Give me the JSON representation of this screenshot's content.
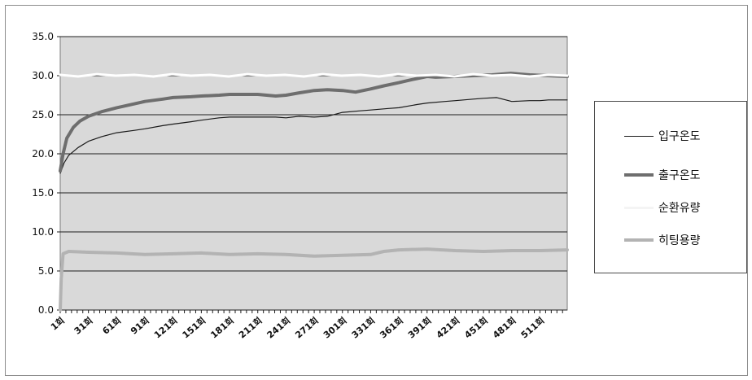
{
  "chart_data": {
    "type": "line",
    "title": "",
    "xlabel": "",
    "ylabel": "",
    "ylim": [
      0,
      35
    ],
    "y_ticks": [
      "0.0",
      "5.0",
      "10.0",
      "15.0",
      "20.0",
      "25.0",
      "30.0",
      "35.0"
    ],
    "x_range": [
      1,
      540
    ],
    "x_tick_values": [
      1,
      31,
      61,
      91,
      121,
      151,
      181,
      211,
      241,
      271,
      301,
      331,
      361,
      391,
      421,
      451,
      481,
      511
    ],
    "x_tick_labels": [
      "1회",
      "31회",
      "61회",
      "91회",
      "121회",
      "151회",
      "181회",
      "211회",
      "241회",
      "271회",
      "301회",
      "331회",
      "361회",
      "391회",
      "421회",
      "451회",
      "481회",
      "511회"
    ],
    "grid": "horizontal",
    "plot_background": "#d9d9d9",
    "legend_position": "right",
    "series": [
      {
        "name": "입구온도",
        "color": "#1a1a1a",
        "x": [
          1,
          5,
          10,
          20,
          31,
          45,
          61,
          80,
          91,
          110,
          121,
          140,
          151,
          170,
          181,
          200,
          211,
          230,
          241,
          255,
          271,
          285,
          301,
          320,
          331,
          350,
          361,
          380,
          391,
          410,
          421,
          440,
          451,
          465,
          481,
          500,
          511,
          520,
          540
        ],
        "y": [
          17.5,
          18.8,
          19.8,
          20.8,
          21.6,
          22.2,
          22.7,
          23.0,
          23.2,
          23.6,
          23.8,
          24.1,
          24.3,
          24.6,
          24.7,
          24.7,
          24.7,
          24.7,
          24.6,
          24.8,
          24.7,
          24.8,
          25.3,
          25.5,
          25.6,
          25.8,
          25.9,
          26.3,
          26.5,
          26.7,
          26.8,
          27.0,
          27.1,
          27.2,
          26.7,
          26.8,
          26.8,
          26.9,
          26.9
        ]
      },
      {
        "name": "출구온도",
        "color": "#6e6e6e",
        "x": [
          1,
          4,
          8,
          15,
          22,
          31,
          45,
          61,
          80,
          91,
          110,
          121,
          140,
          151,
          170,
          181,
          200,
          211,
          230,
          241,
          255,
          271,
          285,
          301,
          315,
          331,
          345,
          361,
          375,
          391,
          400,
          420,
          440,
          460,
          480,
          500,
          520,
          540
        ],
        "y": [
          17.8,
          20.0,
          22.0,
          23.4,
          24.2,
          24.8,
          25.4,
          25.9,
          26.4,
          26.7,
          27.0,
          27.2,
          27.3,
          27.4,
          27.5,
          27.6,
          27.6,
          27.6,
          27.4,
          27.5,
          27.8,
          28.1,
          28.2,
          28.1,
          27.9,
          28.3,
          28.7,
          29.1,
          29.5,
          29.9,
          29.8,
          29.9,
          30.0,
          30.1,
          30.3,
          30.1,
          30.0,
          29.9
        ]
      },
      {
        "name": "순환유량",
        "color": "#ffffff",
        "x": [
          1,
          20,
          40,
          60,
          80,
          100,
          120,
          140,
          160,
          180,
          200,
          220,
          240,
          260,
          280,
          300,
          320,
          340,
          360,
          380,
          400,
          420,
          440,
          460,
          480,
          500,
          520,
          540
        ],
        "y": [
          30.1,
          29.9,
          30.2,
          30.0,
          30.1,
          29.9,
          30.2,
          30.0,
          30.1,
          29.9,
          30.2,
          30.0,
          30.1,
          29.9,
          30.2,
          30.0,
          30.1,
          29.9,
          30.2,
          30.0,
          30.1,
          29.9,
          30.2,
          30.0,
          30.1,
          29.9,
          30.1,
          30.0
        ]
      },
      {
        "name": "히팅용량",
        "color": "#b3b3b3",
        "x": [
          1,
          2,
          4,
          10,
          31,
          61,
          91,
          121,
          151,
          181,
          211,
          241,
          271,
          301,
          331,
          345,
          361,
          391,
          421,
          451,
          481,
          511,
          540
        ],
        "y": [
          0.0,
          4.0,
          7.2,
          7.5,
          7.4,
          7.3,
          7.1,
          7.2,
          7.3,
          7.1,
          7.2,
          7.1,
          6.9,
          7.0,
          7.1,
          7.5,
          7.7,
          7.8,
          7.6,
          7.5,
          7.6,
          7.6,
          7.7
        ]
      }
    ]
  }
}
